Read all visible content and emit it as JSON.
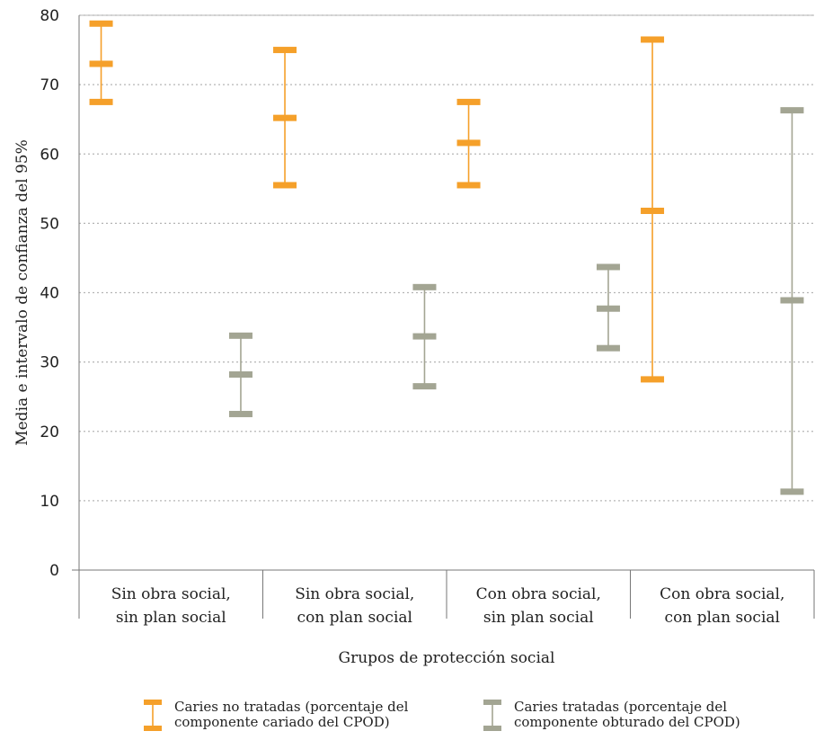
{
  "chart_data": {
    "type": "error-bar",
    "ylabel": "Media e intervalo de confianza del 95%",
    "xlabel": "Grupos de protección social",
    "ylim": [
      0,
      80
    ],
    "yticks": [
      0,
      10,
      20,
      30,
      40,
      50,
      60,
      70,
      80
    ],
    "grid": "horizontal dotted",
    "categories": [
      [
        "Sin obra social,",
        "sin plan social"
      ],
      [
        "Sin obra social,",
        "con plan social"
      ],
      [
        "Con obra social,",
        "sin plan social"
      ],
      [
        "Con obra social,",
        "con plan social"
      ]
    ],
    "series": [
      {
        "name": [
          "Caries no tratadas (porcentaje del",
          "componente cariado del CPOD)"
        ],
        "color": "#F5A02A",
        "lower": [
          67.5,
          55.5,
          55.5,
          27.5
        ],
        "mean": [
          73.0,
          65.2,
          61.6,
          51.8
        ],
        "upper": [
          78.8,
          75.0,
          67.5,
          76.5
        ]
      },
      {
        "name": [
          "Caries tratadas (porcentaje del",
          "componente obturado del CPOD)"
        ],
        "color": "#A3A593",
        "lower": [
          22.5,
          26.5,
          32.0,
          11.3
        ],
        "mean": [
          28.2,
          33.7,
          37.7,
          38.9
        ],
        "upper": [
          33.8,
          40.8,
          43.7,
          66.3
        ]
      }
    ],
    "legend_position": "bottom"
  }
}
